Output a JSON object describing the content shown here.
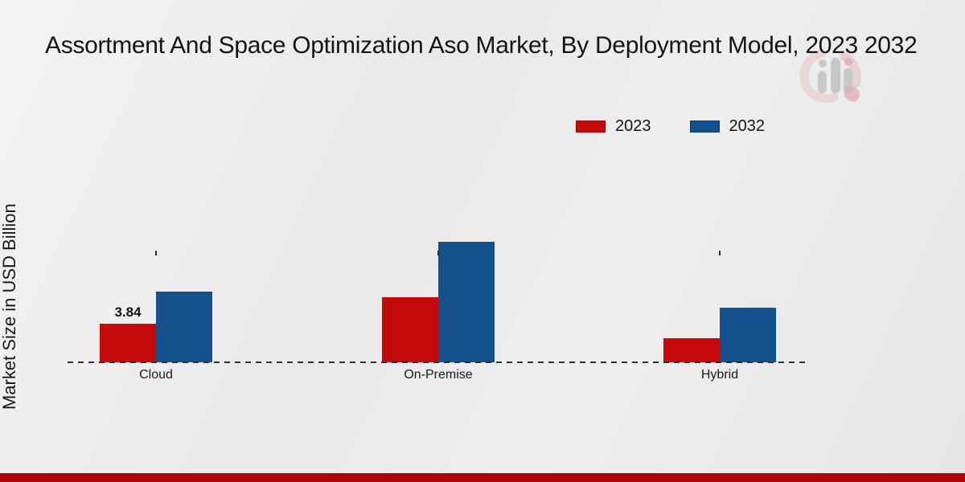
{
  "colors": {
    "background": "#ececec",
    "axis": "#2e2e2e",
    "text": "#141414",
    "footer_bar": "#b10505"
  },
  "watermark_icon": "bar-chart-magnifier-logo",
  "footer": {
    "bar_color": "#b10505"
  },
  "chart_data": {
    "type": "bar",
    "title": "Assortment And Space Optimization Aso Market, By Deployment Model, 2023 2032",
    "ylabel": "Market Size in USD Billion",
    "xlabel": "",
    "categories": [
      "Cloud",
      "On-Premise",
      "Hybrid"
    ],
    "series": [
      {
        "name": "2023",
        "color": "#c40a0a",
        "values": [
          3.84,
          6.45,
          2.4
        ]
      },
      {
        "name": "2032",
        "color": "#14508c",
        "values": [
          7.0,
          11.9,
          5.4
        ]
      }
    ],
    "bar_labels": [
      [
        "3.84",
        null,
        null
      ],
      [
        null,
        null,
        null
      ]
    ],
    "ylim": [
      0,
      13
    ],
    "grid": false,
    "legend_position": "top-right",
    "x_axis_style": "dashed-baseline"
  }
}
